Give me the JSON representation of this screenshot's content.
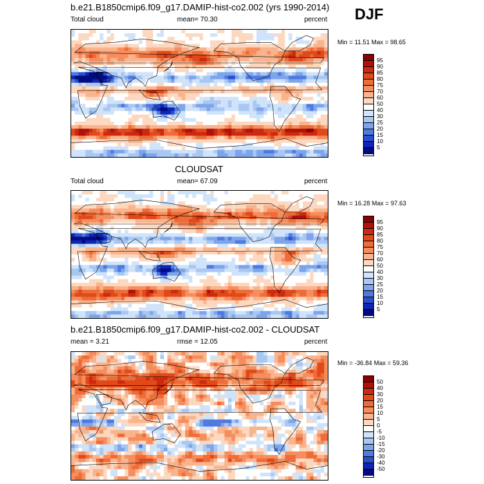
{
  "season": "DJF",
  "units": "percent",
  "panels": [
    {
      "title": "b.e21.B1850cmip6.f09_g17.DAMIP-hist-co2.002 (yrs 1990-2014)",
      "left_label": "Total cloud",
      "stat_label": "mean= 70.30",
      "right_label": "percent",
      "minmax": "Min = 11.51 Max = 98.65",
      "colorbar": {
        "labels": [
          "95",
          "90",
          "85",
          "80",
          "75",
          "70",
          "60",
          "50",
          "40",
          "30",
          "25",
          "20",
          "15",
          "10",
          "5"
        ],
        "colors": [
          "#8b0000",
          "#b0120a",
          "#cc2a10",
          "#e04a1a",
          "#ee6c38",
          "#f58e5e",
          "#f9b48e",
          "#fdd8c0",
          "#ffffff",
          "#cfe3fa",
          "#a9c7f1",
          "#7ea5ea",
          "#4f7ae0",
          "#2a4fd0",
          "#1025b8",
          "#000c80"
        ]
      },
      "field": "model"
    },
    {
      "title": "CLOUDSAT",
      "left_label": "Total cloud",
      "stat_label": "mean= 67.09",
      "right_label": "percent",
      "minmax": "Min = 16.28 Max = 97.63",
      "colorbar": {
        "labels": [
          "95",
          "90",
          "85",
          "80",
          "75",
          "70",
          "60",
          "50",
          "40",
          "30",
          "25",
          "20",
          "15",
          "10",
          "5"
        ],
        "colors": [
          "#8b0000",
          "#b0120a",
          "#cc2a10",
          "#e04a1a",
          "#ee6c38",
          "#f58e5e",
          "#f9b48e",
          "#fdd8c0",
          "#ffffff",
          "#cfe3fa",
          "#a9c7f1",
          "#7ea5ea",
          "#4f7ae0",
          "#2a4fd0",
          "#1025b8",
          "#000c80"
        ]
      },
      "field": "obs"
    },
    {
      "title": "b.e21.B1850cmip6.f09_g17.DAMIP-hist-co2.002 - CLOUDSAT",
      "left_label": "mean = 3.21",
      "stat_label": "rmse = 12.05",
      "right_label": "percent",
      "minmax": "Min = -36.84 Max = 59.36",
      "colorbar": {
        "labels": [
          "50",
          "40",
          "30",
          "20",
          "15",
          "10",
          "5",
          "0",
          "-5",
          "-10",
          "-15",
          "-20",
          "-30",
          "-40",
          "-50"
        ],
        "colors": [
          "#8b0000",
          "#b0120a",
          "#cc2a10",
          "#e04a1a",
          "#ee6c38",
          "#f58e5e",
          "#f9b48e",
          "#fdd8c0",
          "#ffffff",
          "#cfe3fa",
          "#a9c7f1",
          "#7ea5ea",
          "#4f7ae0",
          "#2a4fd0",
          "#1025b8",
          "#000c80"
        ]
      },
      "field": "diff"
    }
  ]
}
